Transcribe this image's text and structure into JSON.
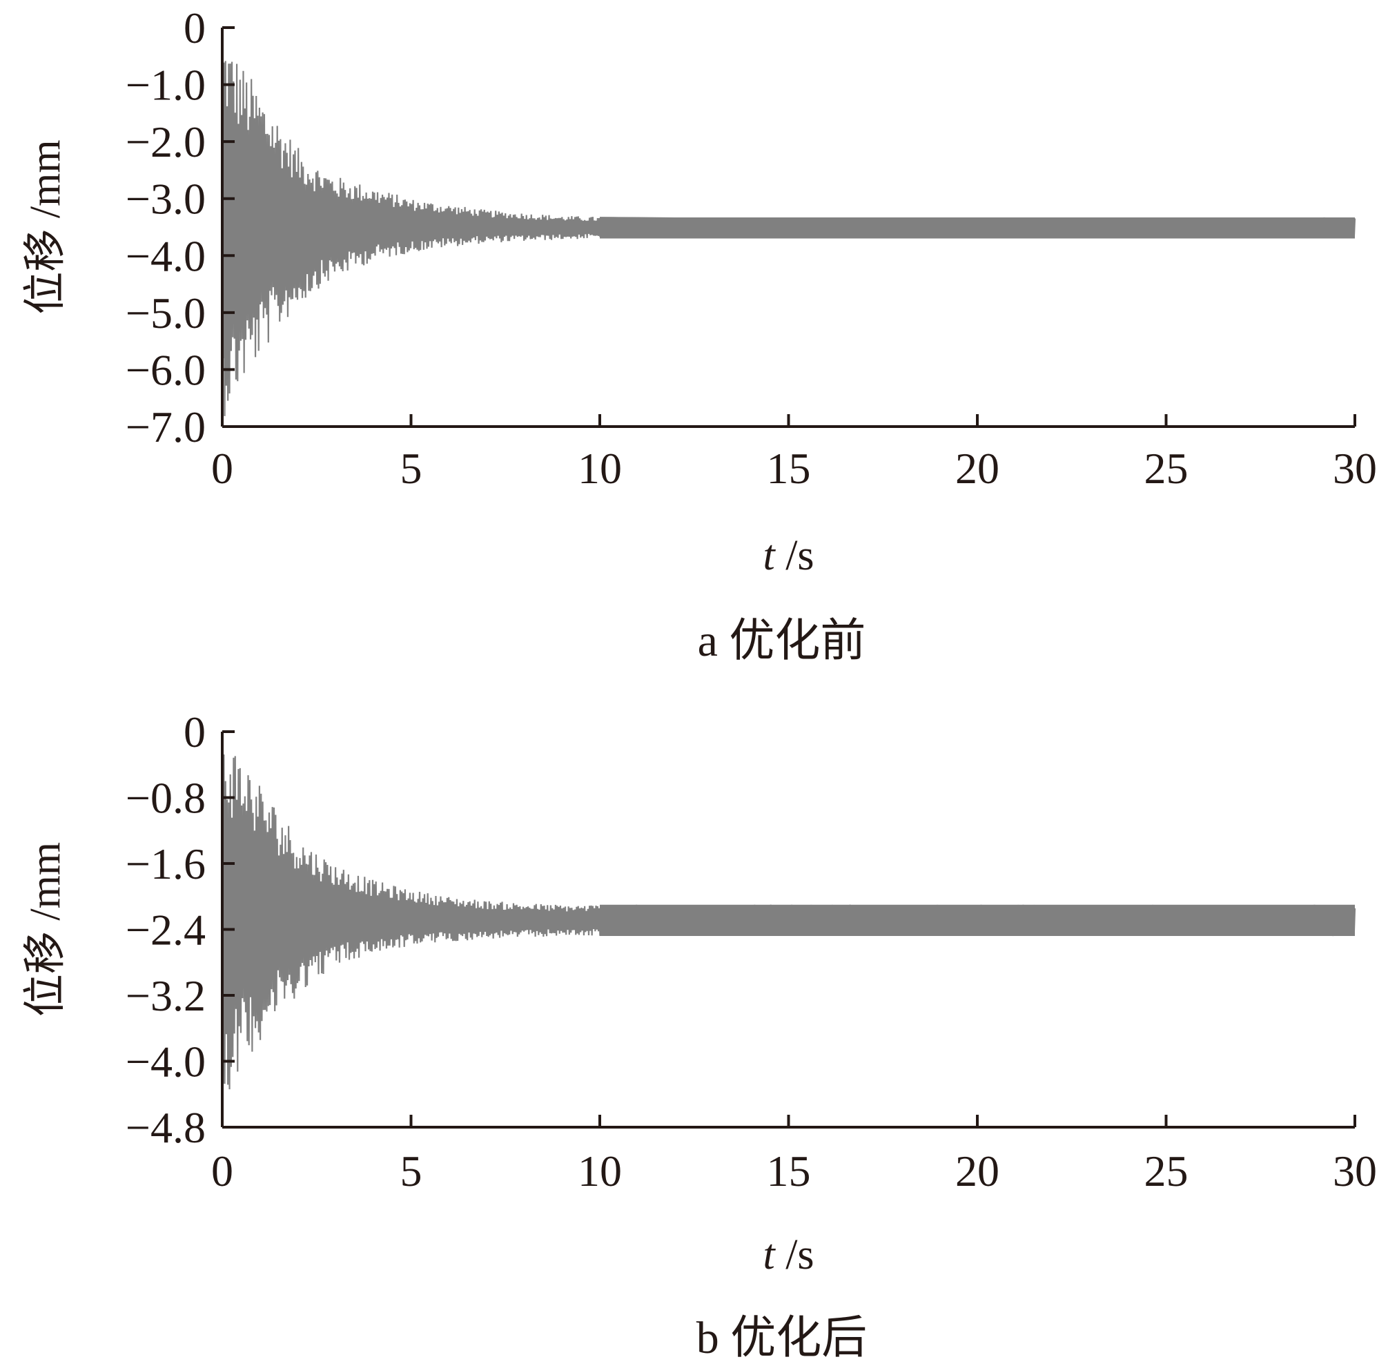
{
  "chart_data": [
    {
      "type": "line",
      "panel": "a",
      "caption": "a 优化前",
      "title": "",
      "xlabel_var": "t",
      "xlabel_unit": " /s",
      "ylabel": "位移 /mm",
      "xlim": [
        0,
        30
      ],
      "ylim": [
        -7.0,
        0
      ],
      "x_ticks": [
        0,
        5,
        10,
        15,
        20,
        25,
        30
      ],
      "x_tick_labels": [
        "0",
        "5",
        "10",
        "15",
        "20",
        "25",
        "30"
      ],
      "y_ticks": [
        0,
        -1.0,
        -2.0,
        -3.0,
        -4.0,
        -5.0,
        -6.0,
        -7.0
      ],
      "y_tick_labels": [
        "0",
        "−1.0",
        "−2.0",
        "−3.0",
        "−4.0",
        "−5.0",
        "−6.0",
        "−7.0"
      ],
      "grid": false,
      "series": [
        {
          "color": "#808080",
          "x": [
            0,
            0.5,
            1,
            1.5,
            2,
            2.5,
            3,
            4,
            5,
            6,
            7,
            8,
            9,
            10,
            12,
            15,
            20,
            25,
            30
          ],
          "upper": [
            0,
            -0.6,
            -1.1,
            -1.6,
            -2.1,
            -2.4,
            -2.6,
            -2.8,
            -3.0,
            -3.1,
            -3.2,
            -3.25,
            -3.3,
            -3.32,
            -3.33,
            -3.33,
            -3.33,
            -3.33,
            -3.33
          ],
          "lower": [
            -6.9,
            -6.3,
            -5.8,
            -5.3,
            -4.9,
            -4.6,
            -4.4,
            -4.1,
            -3.95,
            -3.85,
            -3.78,
            -3.75,
            -3.72,
            -3.7,
            -3.7,
            -3.7,
            -3.7,
            -3.7,
            -3.7
          ]
        }
      ]
    },
    {
      "type": "line",
      "panel": "b",
      "caption": "b 优化后",
      "title": "",
      "xlabel_var": "t",
      "xlabel_unit": " /s",
      "ylabel": "位移 /mm",
      "xlim": [
        0,
        30
      ],
      "ylim": [
        -4.8,
        0
      ],
      "x_ticks": [
        0,
        5,
        10,
        15,
        20,
        25,
        30
      ],
      "x_tick_labels": [
        "0",
        "5",
        "10",
        "15",
        "20",
        "25",
        "30"
      ],
      "y_ticks": [
        0,
        -0.8,
        -1.6,
        -2.4,
        -3.2,
        -4.0,
        -4.8
      ],
      "y_tick_labels": [
        "0",
        "−0.8",
        "−1.6",
        "−2.4",
        "−3.2",
        "−4.0",
        "−4.8"
      ],
      "grid": false,
      "series": [
        {
          "color": "#808080",
          "x": [
            0,
            0.5,
            1,
            1.5,
            2,
            2.5,
            3,
            4,
            5,
            6,
            7,
            8,
            9,
            10,
            12,
            15,
            20,
            25,
            30
          ],
          "upper": [
            0,
            -0.25,
            -0.6,
            -0.95,
            -1.25,
            -1.45,
            -1.6,
            -1.8,
            -1.92,
            -2.0,
            -2.05,
            -2.08,
            -2.1,
            -2.1,
            -2.1,
            -2.1,
            -2.1,
            -2.1,
            -2.1
          ],
          "lower": [
            -4.5,
            -4.1,
            -3.75,
            -3.45,
            -3.2,
            -3.0,
            -2.85,
            -2.7,
            -2.6,
            -2.55,
            -2.52,
            -2.5,
            -2.48,
            -2.48,
            -2.48,
            -2.48,
            -2.48,
            -2.48,
            -2.48
          ]
        }
      ]
    }
  ]
}
